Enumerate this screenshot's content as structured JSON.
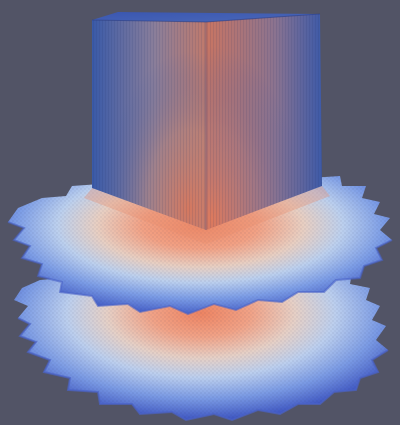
{
  "viewport": {
    "background": "#525466"
  },
  "visualization": {
    "colormap": [
      "#3b4cc0",
      "#6f92f3",
      "#aac7fd",
      "#dddcdc",
      "#f7b89c",
      "#e7745b",
      "#b40426"
    ],
    "objects": [
      "volume-cube",
      "upper-slice",
      "lower-slice"
    ]
  }
}
